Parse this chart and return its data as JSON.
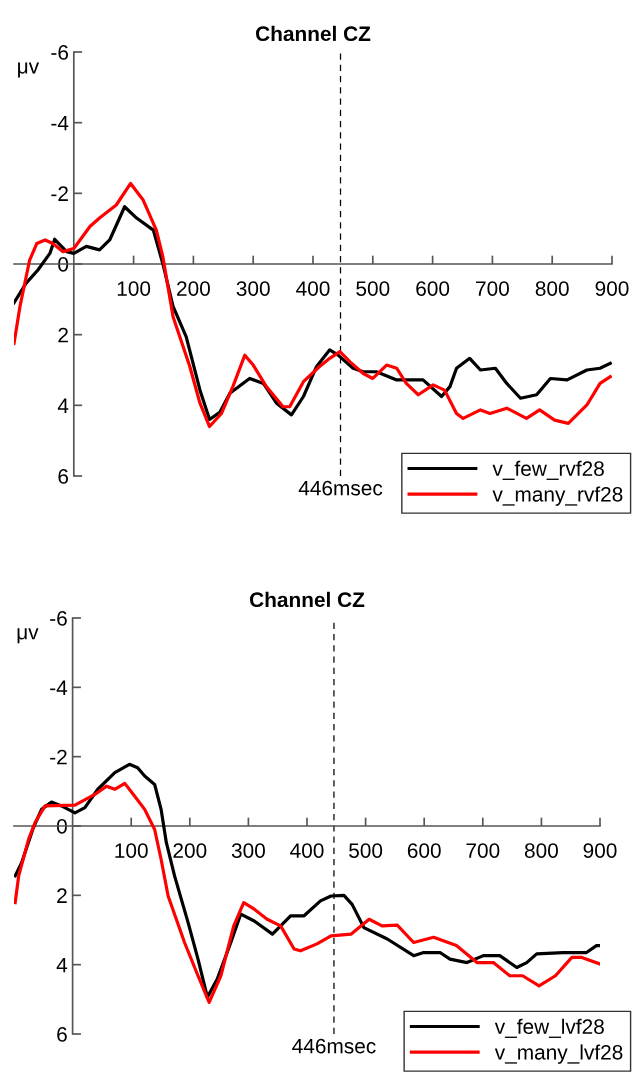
{
  "chart_data": [
    {
      "type": "line",
      "title": "Channel CZ",
      "ylabel": "μv",
      "xlim": [
        -100,
        900
      ],
      "ylim": [
        6,
        -6
      ],
      "xticks": [
        100,
        200,
        300,
        400,
        500,
        600,
        700,
        800,
        900
      ],
      "yticks": [
        -6,
        -4,
        -2,
        0,
        2,
        4,
        6
      ],
      "grid": false,
      "legend": "bottom right",
      "line_style": "solid",
      "marker": "none",
      "ref_lines": [
        {
          "axis": "x",
          "value": 446,
          "label": "446msec",
          "line_style": "dashed",
          "color": "#000000"
        }
      ],
      "series": [
        {
          "name": "v_few_rvf28",
          "color": "#000000",
          "x": [
            -100,
            -80,
            -60,
            -40,
            -32,
            -12,
            0,
            21,
            43,
            60,
            85,
            105,
            133,
            149,
            166,
            188,
            211,
            227,
            244,
            261,
            294,
            317,
            339,
            364,
            384,
            406,
            428,
            442,
            467,
            484,
            506,
            540,
            584,
            615,
            629,
            640,
            662,
            680,
            705,
            724,
            747,
            774,
            797,
            825,
            858,
            880,
            897
          ],
          "values": [
            1.1,
            0.55,
            0.17,
            -0.3,
            -0.7,
            -0.35,
            -0.3,
            -0.5,
            -0.4,
            -0.68,
            -1.62,
            -1.3,
            -0.96,
            0,
            1.2,
            2.06,
            3.57,
            4.4,
            4.2,
            3.66,
            3.24,
            3.38,
            3.94,
            4.27,
            3.75,
            2.9,
            2.43,
            2.58,
            2.95,
            3.05,
            3.05,
            3.28,
            3.28,
            3.75,
            3.47,
            2.95,
            2.67,
            3.0,
            2.95,
            3.38,
            3.8,
            3.7,
            3.24,
            3.28,
            3.0,
            2.95,
            2.81
          ]
        },
        {
          "name": "v_many_rvf28",
          "color": "#ff0000",
          "x": [
            -100,
            -90,
            -74,
            -62,
            -48,
            -35,
            -18,
            0,
            27,
            43,
            71,
            95,
            116,
            138,
            149,
            166,
            194,
            211,
            227,
            247,
            266,
            286,
            300,
            322,
            350,
            361,
            384,
            411,
            428,
            445,
            462,
            484,
            500,
            523,
            540,
            556,
            576,
            601,
            620,
            640,
            651,
            680,
            696,
            724,
            757,
            779,
            804,
            827,
            858,
            880,
            897
          ],
          "values": [
            2.25,
            1.2,
            -0.1,
            -0.58,
            -0.68,
            -0.58,
            -0.35,
            -0.44,
            -1.06,
            -1.3,
            -1.67,
            -2.28,
            -1.81,
            -0.96,
            -0.2,
            1.49,
            2.9,
            3.94,
            4.6,
            4.23,
            3.47,
            2.58,
            2.86,
            3.47,
            4.04,
            4.04,
            3.33,
            2.9,
            2.67,
            2.48,
            2.77,
            3.1,
            3.24,
            2.86,
            2.95,
            3.38,
            3.7,
            3.42,
            3.57,
            4.23,
            4.37,
            4.13,
            4.23,
            4.08,
            4.37,
            4.13,
            4.42,
            4.51,
            3.99,
            3.38,
            3.19
          ]
        }
      ]
    },
    {
      "type": "line",
      "title": "Channel CZ",
      "ylabel": "μv",
      "xlim": [
        -100,
        900
      ],
      "ylim": [
        6,
        -6
      ],
      "xticks": [
        100,
        200,
        300,
        400,
        500,
        600,
        700,
        800,
        900
      ],
      "yticks": [
        -6,
        -4,
        -2,
        0,
        2,
        4,
        6
      ],
      "grid": false,
      "legend": "bottom right",
      "line_style": "solid",
      "marker": "none",
      "ref_lines": [
        {
          "axis": "x",
          "value": 446,
          "label": "446msec",
          "line_style": "dashed",
          "color": "#000000"
        }
      ],
      "series": [
        {
          "name": "v_few_lvf28",
          "color": "#000000",
          "x": [
            -98,
            -87,
            -67,
            -53,
            -36,
            -19,
            4,
            21,
            43,
            72,
            97,
            111,
            123,
            140,
            151,
            160,
            174,
            197,
            214,
            230,
            247,
            270,
            287,
            310,
            341,
            372,
            395,
            423,
            441,
            463,
            477,
            497,
            537,
            582,
            599,
            627,
            644,
            673,
            701,
            729,
            758,
            775,
            792,
            837,
            877,
            894,
            900
          ],
          "values": [
            1.44,
            1.06,
            0.05,
            -0.48,
            -0.69,
            -0.58,
            -0.38,
            -0.53,
            -1.06,
            -1.54,
            -1.78,
            -1.68,
            -1.44,
            -1.2,
            -0.48,
            0.48,
            1.44,
            2.78,
            3.84,
            4.94,
            4.41,
            3.36,
            2.54,
            2.74,
            3.12,
            2.59,
            2.59,
            2.16,
            2.02,
            2.0,
            2.26,
            2.93,
            3.26,
            3.74,
            3.65,
            3.65,
            3.84,
            3.94,
            3.74,
            3.74,
            4.08,
            3.94,
            3.69,
            3.65,
            3.65,
            3.45,
            3.45
          ]
        },
        {
          "name": "v_many_lvf28",
          "color": "#ff0000",
          "x": [
            -98,
            -92,
            -75,
            -64,
            -47,
            4,
            38,
            58,
            72,
            89,
            106,
            123,
            140,
            151,
            163,
            191,
            214,
            233,
            253,
            275,
            292,
            310,
            332,
            355,
            378,
            389,
            417,
            441,
            475,
            506,
            528,
            554,
            582,
            616,
            655,
            690,
            718,
            746,
            768,
            796,
            824,
            852,
            869,
            900
          ],
          "values": [
            2.21,
            1.44,
            0.38,
            -0.1,
            -0.58,
            -0.6,
            -0.91,
            -1.15,
            -1.06,
            -1.23,
            -0.86,
            -0.48,
            0.1,
            0.96,
            2.02,
            3.36,
            4.32,
            5.09,
            4.32,
            2.88,
            2.21,
            2.4,
            2.69,
            2.88,
            3.55,
            3.6,
            3.4,
            3.17,
            3.12,
            2.69,
            2.88,
            2.86,
            3.36,
            3.21,
            3.45,
            3.94,
            3.94,
            4.32,
            4.32,
            4.61,
            4.32,
            3.79,
            3.79,
            3.98
          ]
        }
      ]
    }
  ]
}
